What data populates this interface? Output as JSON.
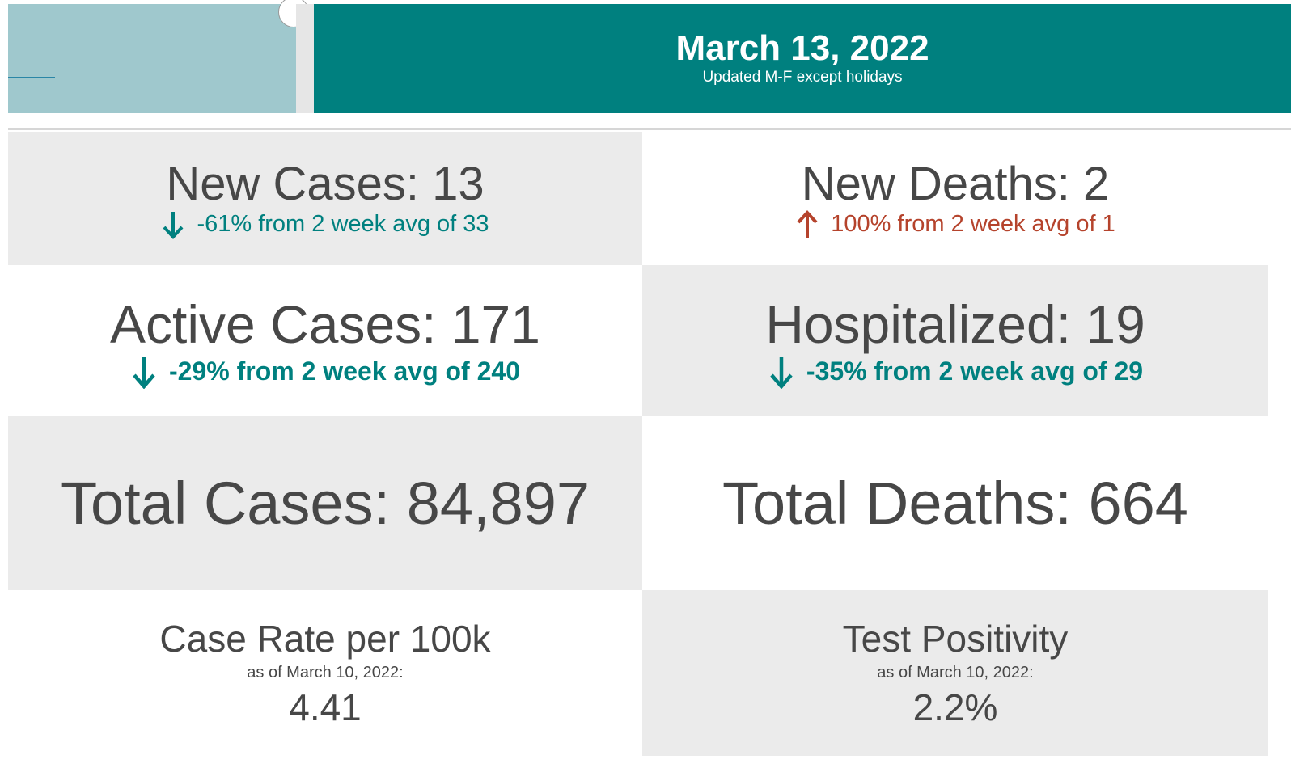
{
  "header": {
    "date": "March 13, 2022",
    "subtitle": "Updated M-F except holidays"
  },
  "tiles": [
    {
      "title": "New Cases: 13",
      "change": "-61% from 2 week avg of 33"
    },
    {
      "title": "New Deaths: 2",
      "change": "100% from 2 week avg of 1"
    },
    {
      "title": "Active Cases: 171",
      "change": "-29% from 2 week avg of 240"
    },
    {
      "title": "Hospitalized: 19",
      "change": "-35% from 2 week avg of 29"
    },
    {
      "title": "Total Cases: 84,897"
    },
    {
      "title": "Total Deaths: 664"
    },
    {
      "title": "Case Rate per 100k",
      "note": "as of March 10, 2022:",
      "value": "4.41"
    },
    {
      "title": "Test Positivity",
      "note": "as of March 10, 2022:",
      "value": "2.2%"
    }
  ]
}
